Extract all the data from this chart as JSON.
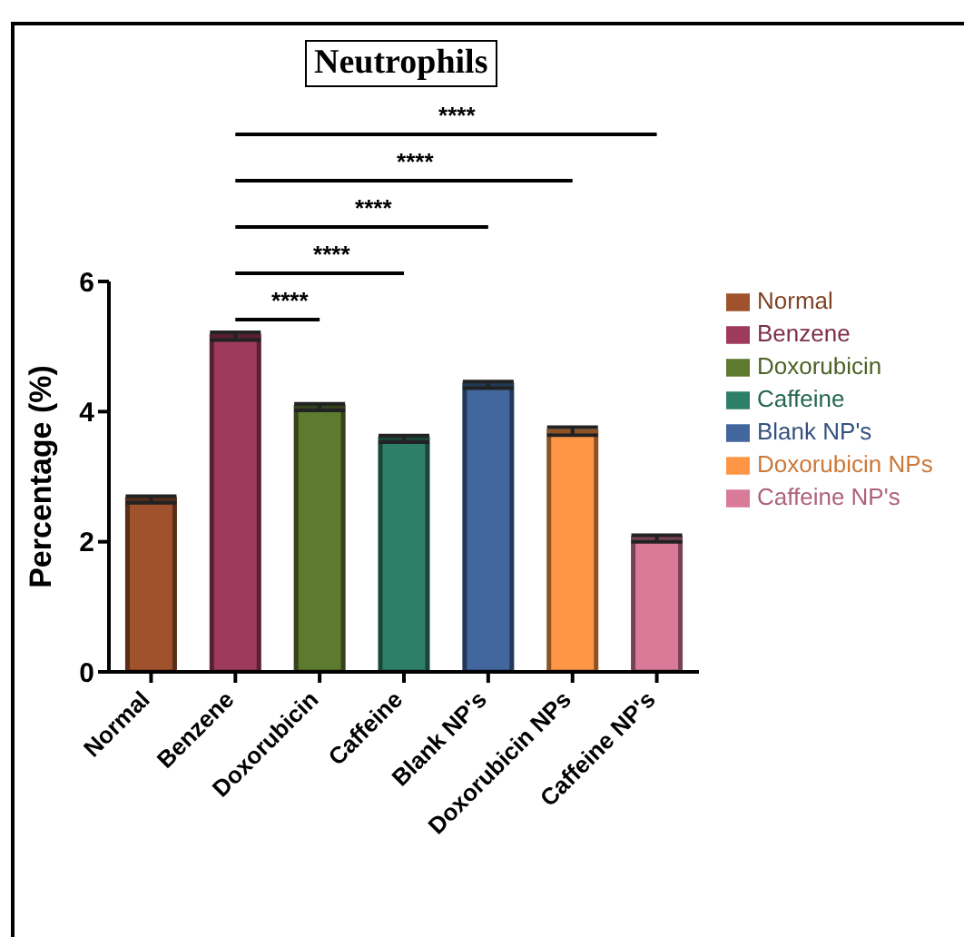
{
  "chart_data": {
    "type": "bar",
    "title": "Neutrophils",
    "ylabel": "Percentage (%)",
    "categories": [
      "Normal",
      "Benzene",
      "Doxorubicin",
      "Caffeine",
      "Blank NP's",
      "Doxorubicin NPs",
      "Caffeine NP's"
    ],
    "stacked": true,
    "series": [
      {
        "name": "Normal",
        "color": "#a0522d",
        "values": [
          2.65,
          null,
          null,
          null,
          null,
          null,
          null
        ],
        "errors": [
          0.05,
          null,
          null,
          null,
          null,
          null,
          null
        ]
      },
      {
        "name": "Benzene",
        "color": "#9e3a5c",
        "values": [
          null,
          5.16,
          null,
          null,
          null,
          null,
          null
        ],
        "errors": [
          null,
          0.06,
          null,
          null,
          null,
          null,
          null
        ]
      },
      {
        "name": "Doxorubicin",
        "color": "#5e7a2e",
        "values": [
          null,
          null,
          4.07,
          null,
          null,
          null,
          null
        ],
        "errors": [
          null,
          null,
          0.05,
          null,
          null,
          null,
          null
        ]
      },
      {
        "name": "Caffeine",
        "color": "#2e7f68",
        "values": [
          null,
          null,
          null,
          3.58,
          null,
          null,
          null
        ],
        "errors": [
          null,
          null,
          null,
          0.05,
          null,
          null,
          null
        ]
      },
      {
        "name": "Blank NP's",
        "color": "#41679e",
        "values": [
          null,
          null,
          null,
          null,
          4.41,
          null,
          null
        ],
        "errors": [
          null,
          null,
          null,
          null,
          0.05,
          null,
          null
        ]
      },
      {
        "name": "Doxorubicin NPs",
        "color": "#ff9645",
        "values": [
          null,
          null,
          null,
          null,
          null,
          3.7,
          null
        ],
        "errors": [
          null,
          null,
          null,
          null,
          null,
          0.06,
          null
        ]
      },
      {
        "name": "Caffeine NP's",
        "color": "#d97a98",
        "values": [
          null,
          null,
          null,
          null,
          null,
          null,
          2.05
        ],
        "errors": [
          null,
          null,
          null,
          null,
          null,
          null,
          0.05
        ]
      }
    ],
    "ylim": [
      0,
      6
    ],
    "yticks": [
      0,
      2,
      4,
      6
    ],
    "grid": false,
    "legend": "right",
    "annotations": [
      "****",
      "****",
      "****",
      "****",
      "****"
    ]
  }
}
